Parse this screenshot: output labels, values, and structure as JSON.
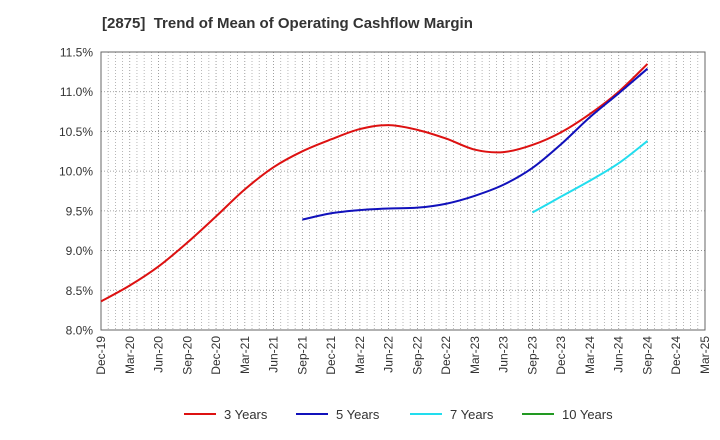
{
  "chart_data": {
    "type": "line",
    "title": "[2875]  Trend of Mean of Operating Cashflow Margin",
    "xlabel": "",
    "ylabel": "",
    "categories": [
      "Dec-19",
      "Mar-20",
      "Jun-20",
      "Sep-20",
      "Dec-20",
      "Mar-21",
      "Jun-21",
      "Sep-21",
      "Dec-21",
      "Mar-22",
      "Jun-22",
      "Sep-22",
      "Dec-22",
      "Mar-23",
      "Jun-23",
      "Sep-23",
      "Dec-23",
      "Mar-24",
      "Jun-24",
      "Sep-24",
      "Dec-24",
      "Mar-25"
    ],
    "ylim": [
      8.0,
      11.5
    ],
    "y_ticks": [
      "8.0%",
      "8.5%",
      "9.0%",
      "9.5%",
      "10.0%",
      "10.5%",
      "11.0%",
      "11.5%"
    ],
    "grid": true,
    "legend_position": "bottom",
    "series": [
      {
        "name": "3 Years",
        "color": "#dd1111",
        "values": [
          8.36,
          8.56,
          8.8,
          9.1,
          9.43,
          9.77,
          10.05,
          10.25,
          10.4,
          10.53,
          10.58,
          10.52,
          10.41,
          10.27,
          10.24,
          10.33,
          10.49,
          10.72,
          11.0,
          11.35,
          null,
          null
        ]
      },
      {
        "name": "5 Years",
        "color": "#1111bb",
        "values": [
          null,
          null,
          null,
          null,
          null,
          null,
          null,
          9.39,
          9.47,
          9.51,
          9.53,
          9.54,
          9.59,
          9.69,
          9.83,
          10.04,
          10.34,
          10.68,
          10.98,
          11.29,
          null,
          null
        ]
      },
      {
        "name": "7 Years",
        "color": "#22ddee",
        "values": [
          null,
          null,
          null,
          null,
          null,
          null,
          null,
          null,
          null,
          null,
          null,
          null,
          null,
          null,
          null,
          9.48,
          9.68,
          9.88,
          10.1,
          10.38,
          null,
          null
        ]
      },
      {
        "name": "10 Years",
        "color": "#229922",
        "values": [
          null,
          null,
          null,
          null,
          null,
          null,
          null,
          null,
          null,
          null,
          null,
          null,
          null,
          null,
          null,
          null,
          null,
          null,
          null,
          null,
          null,
          null
        ]
      }
    ]
  }
}
